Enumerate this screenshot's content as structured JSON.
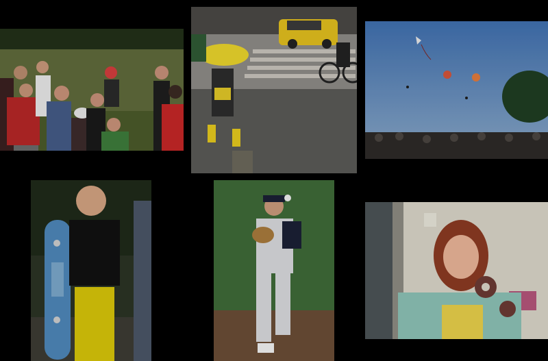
{
  "collage": {
    "background": "#000000",
    "photos": [
      {
        "name": "frisbee-group-photo",
        "accent": "#8a1f1f"
      },
      {
        "name": "yellow-umbrella-street-photo",
        "accent": "#e2c21c"
      },
      {
        "name": "kite-festival-photo",
        "accent": "#5d7fa6"
      },
      {
        "name": "boy-skateboard-photo",
        "accent": "#d2c300"
      },
      {
        "name": "baseball-pitcher-photo",
        "accent": "#3f6b36"
      },
      {
        "name": "woman-donut-photo",
        "accent": "#b44a2e"
      }
    ]
  }
}
